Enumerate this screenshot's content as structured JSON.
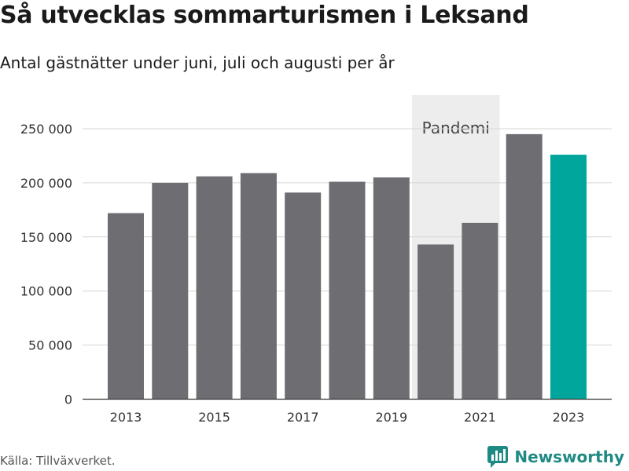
{
  "title": "Så utvecklas sommarturismen i Leksand",
  "subtitle": "Antal gästnätter under juni, juli och augusti per år",
  "source": "Källa: Tillväxverket.",
  "brand": {
    "name": "Newsworthy",
    "icon": "bar-chart-logo-icon",
    "color": "#1f8a83"
  },
  "chart_data": {
    "type": "bar",
    "title": "Så utvecklas sommarturismen i Leksand",
    "subtitle": "Antal gästnätter under juni, juli och augusti per år",
    "categories": [
      2013,
      2014,
      2015,
      2016,
      2017,
      2018,
      2019,
      2020,
      2021,
      2022,
      2023
    ],
    "values": [
      172000,
      200000,
      206000,
      209000,
      191000,
      201000,
      205000,
      143000,
      163000,
      245000,
      226000
    ],
    "colors": {
      "default": "#6e6d72",
      "highlight": "#00a69c",
      "highlight_category": 2023,
      "band": "#ededed"
    },
    "ylim": [
      0,
      270000
    ],
    "yticks": [
      0,
      50000,
      100000,
      150000,
      200000,
      250000
    ],
    "ytick_labels": [
      "0",
      "50 000",
      "100 000",
      "150 000",
      "200 000",
      "250 000"
    ],
    "xticks": [
      2013,
      2015,
      2017,
      2019,
      2021,
      2023
    ],
    "xtick_labels": [
      "2013",
      "2015",
      "2017",
      "2019",
      "2021",
      "2023"
    ],
    "grid": true,
    "annotation": {
      "label": "Pandemi",
      "from": 2020,
      "to": 2021
    }
  }
}
